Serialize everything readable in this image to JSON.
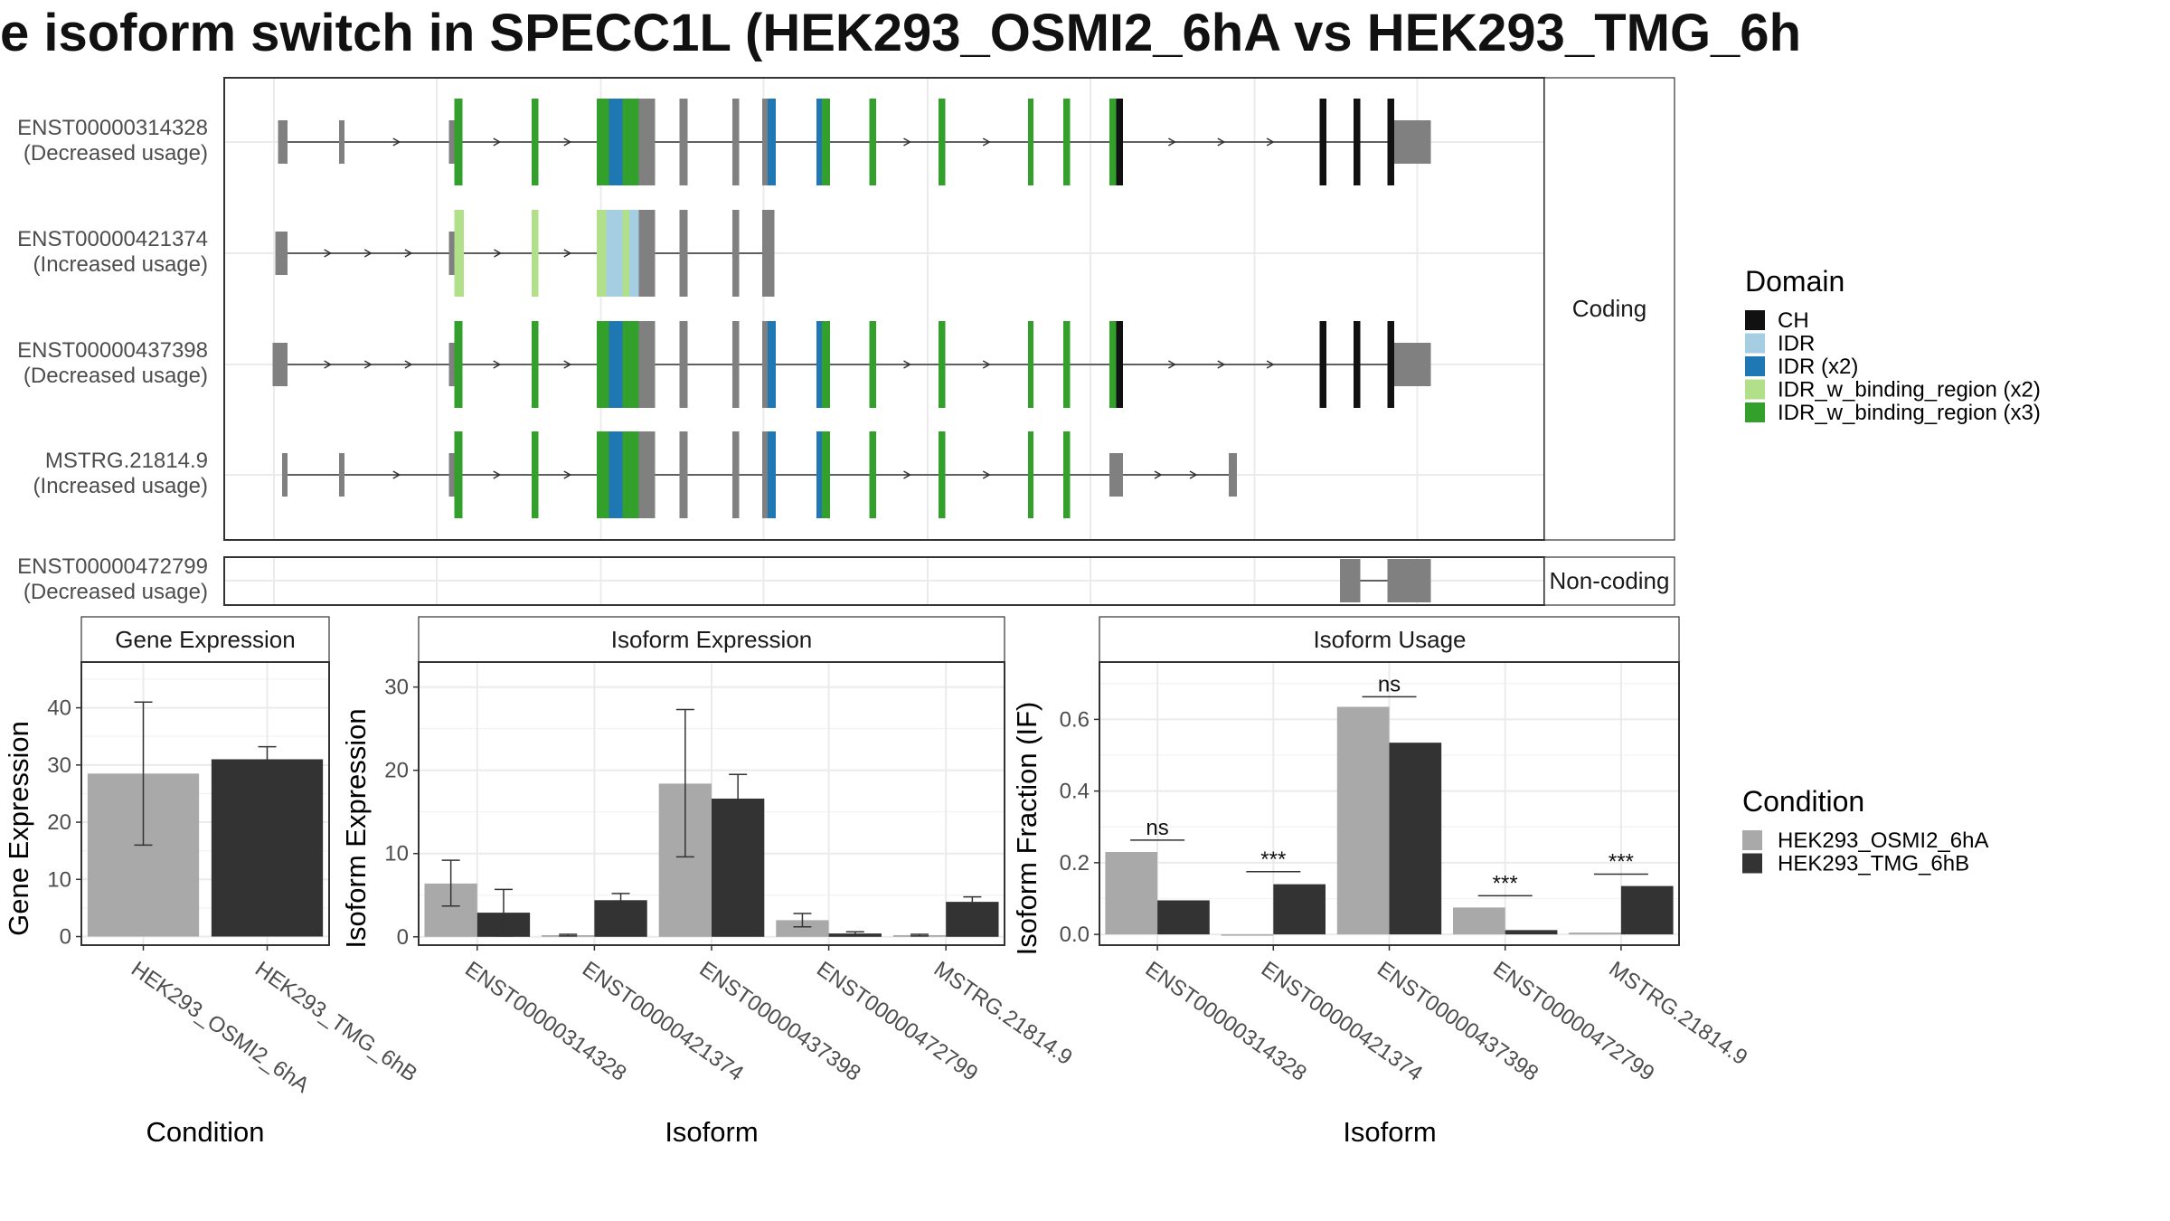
{
  "title": "e isoform switch in SPECC1L (HEK293_OSMI2_6hA vs HEK293_TMG_6h",
  "colors": {
    "condition_a": "#a9a9a9",
    "condition_b": "#333333",
    "utr": "#808080",
    "CH": "#111111",
    "IDR": "#a6cee3",
    "IDR (x2)": "#1f78b4",
    "IDR_w_binding_region (x2)": "#b2df8a",
    "IDR_w_binding_region (x3)": "#33a02c"
  },
  "legends": {
    "domain_title": "Domain",
    "domain_items": [
      "CH",
      "IDR",
      "IDR (x2)",
      "IDR_w_binding_region (x2)",
      "IDR_w_binding_region (x3)"
    ],
    "condition_title": "Condition",
    "condition_items": [
      "HEK293_OSMI2_6hA",
      "HEK293_TMG_6hB"
    ]
  },
  "chart_data": [
    {
      "type": "gene-structure",
      "facets": [
        "Coding",
        "Non-coding"
      ],
      "transcripts": [
        {
          "id": "ENST00000314328",
          "note": "(Decreased usage)",
          "facet": "Coding",
          "exons": [
            [
              205,
              212,
              "utr"
            ],
            [
              250,
              254,
              "utr"
            ],
            [
              331,
              335,
              "utr"
            ],
            [
              335,
              341,
              "IDR_w_binding_region (x3)"
            ],
            [
              392,
              397,
              "IDR_w_binding_region (x3)"
            ],
            [
              440,
              449,
              "IDR_w_binding_region (x3)"
            ],
            [
              449,
              459,
              "IDR (x2)"
            ],
            [
              459,
              471,
              "IDR_w_binding_region (x3)"
            ],
            [
              471,
              483,
              "utr"
            ],
            [
              501,
              507,
              "utr"
            ],
            [
              540,
              545,
              "utr"
            ],
            [
              562,
              566,
              "utr"
            ],
            [
              566,
              572,
              "IDR (x2)"
            ],
            [
              602,
              606,
              "IDR (x2)"
            ],
            [
              606,
              612,
              "IDR_w_binding_region (x3)"
            ],
            [
              641,
              646,
              "IDR_w_binding_region (x3)"
            ],
            [
              692,
              697,
              "IDR_w_binding_region (x3)"
            ],
            [
              758,
              762,
              "IDR_w_binding_region (x3)"
            ],
            [
              784,
              789,
              "IDR_w_binding_region (x3)"
            ],
            [
              818,
              823,
              "IDR_w_binding_region (x3)"
            ],
            [
              823,
              828,
              "CH"
            ],
            [
              973,
              978,
              "CH"
            ],
            [
              998,
              1003,
              "CH"
            ],
            [
              1023,
              1028,
              "CH"
            ],
            [
              1028,
              1055,
              "utr"
            ]
          ]
        },
        {
          "id": "ENST00000421374",
          "note": "(Increased usage)",
          "facet": "Coding",
          "exons": [
            [
              203,
              212,
              "utr"
            ],
            [
              331,
              335,
              "utr"
            ],
            [
              335,
              342,
              "IDR_w_binding_region (x2)"
            ],
            [
              392,
              397,
              "IDR_w_binding_region (x2)"
            ],
            [
              440,
              447,
              "IDR_w_binding_region (x2)"
            ],
            [
              447,
              452,
              "IDR"
            ],
            [
              452,
              459,
              "IDR"
            ],
            [
              459,
              464,
              "IDR_w_binding_region (x2)"
            ],
            [
              464,
              471,
              "IDR"
            ],
            [
              471,
              483,
              "utr"
            ],
            [
              501,
              507,
              "utr"
            ],
            [
              540,
              545,
              "utr"
            ],
            [
              562,
              571,
              "utr"
            ]
          ]
        },
        {
          "id": "ENST00000437398",
          "note": "(Decreased usage)",
          "facet": "Coding",
          "exons": [
            [
              201,
              212,
              "utr"
            ],
            [
              331,
              335,
              "utr"
            ],
            [
              335,
              341,
              "IDR_w_binding_region (x3)"
            ],
            [
              392,
              397,
              "IDR_w_binding_region (x3)"
            ],
            [
              440,
              449,
              "IDR_w_binding_region (x3)"
            ],
            [
              449,
              459,
              "IDR (x2)"
            ],
            [
              459,
              471,
              "IDR_w_binding_region (x3)"
            ],
            [
              471,
              483,
              "utr"
            ],
            [
              501,
              507,
              "utr"
            ],
            [
              540,
              545,
              "utr"
            ],
            [
              562,
              566,
              "utr"
            ],
            [
              566,
              572,
              "IDR (x2)"
            ],
            [
              602,
              606,
              "IDR (x2)"
            ],
            [
              606,
              612,
              "IDR_w_binding_region (x3)"
            ],
            [
              641,
              646,
              "IDR_w_binding_region (x3)"
            ],
            [
              692,
              697,
              "IDR_w_binding_region (x3)"
            ],
            [
              758,
              762,
              "IDR_w_binding_region (x3)"
            ],
            [
              784,
              789,
              "IDR_w_binding_region (x3)"
            ],
            [
              818,
              823,
              "IDR_w_binding_region (x3)"
            ],
            [
              823,
              828,
              "CH"
            ],
            [
              973,
              978,
              "CH"
            ],
            [
              998,
              1003,
              "CH"
            ],
            [
              1023,
              1028,
              "CH"
            ],
            [
              1028,
              1055,
              "utr"
            ]
          ]
        },
        {
          "id": "MSTRG.21814.9",
          "note": "(Increased usage)",
          "facet": "Coding",
          "exons": [
            [
              208,
              212,
              "utr"
            ],
            [
              250,
              254,
              "utr"
            ],
            [
              331,
              335,
              "utr"
            ],
            [
              335,
              341,
              "IDR_w_binding_region (x3)"
            ],
            [
              392,
              397,
              "IDR_w_binding_region (x3)"
            ],
            [
              440,
              449,
              "IDR_w_binding_region (x3)"
            ],
            [
              449,
              459,
              "IDR (x2)"
            ],
            [
              459,
              471,
              "IDR_w_binding_region (x3)"
            ],
            [
              471,
              483,
              "utr"
            ],
            [
              501,
              507,
              "utr"
            ],
            [
              540,
              545,
              "utr"
            ],
            [
              562,
              566,
              "utr"
            ],
            [
              566,
              572,
              "IDR (x2)"
            ],
            [
              602,
              606,
              "IDR (x2)"
            ],
            [
              606,
              612,
              "IDR_w_binding_region (x3)"
            ],
            [
              641,
              646,
              "IDR_w_binding_region (x3)"
            ],
            [
              692,
              697,
              "IDR_w_binding_region (x3)"
            ],
            [
              758,
              762,
              "IDR_w_binding_region (x3)"
            ],
            [
              784,
              789,
              "IDR_w_binding_region (x3)"
            ],
            [
              818,
              828,
              "utr"
            ],
            [
              906,
              912,
              "utr"
            ]
          ]
        },
        {
          "id": "ENST00000472799",
          "note": "(Decreased usage)",
          "facet": "Non-coding",
          "exons": [
            [
              988,
              1003,
              "utr"
            ],
            [
              1023,
              1055,
              "utr"
            ]
          ]
        }
      ]
    },
    {
      "type": "bar",
      "title": "Gene Expression",
      "xlabel": "Condition",
      "ylabel": "Gene Expression",
      "ylim": [
        -1.5,
        48
      ],
      "yticks": [
        0,
        10,
        20,
        30,
        40
      ],
      "categories": [
        "HEK293_OSMI2_6hA",
        "HEK293_TMG_6hB"
      ],
      "values": [
        28.5,
        31
      ],
      "errors": [
        [
          16,
          41
        ],
        [
          28.8,
          33.2
        ]
      ]
    },
    {
      "type": "bar",
      "title": "Isoform Expression",
      "xlabel": "Isoform",
      "ylabel": "Isoform Expression",
      "ylim": [
        -1,
        33
      ],
      "yticks": [
        0,
        10,
        20,
        30
      ],
      "categories": [
        "ENST00000314328",
        "ENST00000421374",
        "ENST00000437398",
        "ENST00000472799",
        "MSTRG.21814.9"
      ],
      "series": [
        {
          "name": "HEK293_OSMI2_6hA",
          "values": [
            6.4,
            0.2,
            18.4,
            2.0,
            0.2
          ],
          "errors": [
            [
              3.7,
              9.2
            ],
            [
              0.1,
              0.3
            ],
            [
              9.6,
              27.3
            ],
            [
              1.2,
              2.8
            ],
            [
              0.1,
              0.3
            ]
          ]
        },
        {
          "name": "HEK293_TMG_6hB",
          "values": [
            2.9,
            4.4,
            16.6,
            0.4,
            4.2
          ],
          "errors": [
            [
              0.1,
              5.7
            ],
            [
              3.6,
              5.2
            ],
            [
              13.7,
              19.5
            ],
            [
              0.2,
              0.6
            ],
            [
              3.6,
              4.8
            ]
          ]
        }
      ]
    },
    {
      "type": "bar",
      "title": "Isoform Usage",
      "xlabel": "Isoform",
      "ylabel": "Isoform Fraction (IF)",
      "ylim": [
        -0.03,
        0.76
      ],
      "yticks": [
        0.0,
        0.2,
        0.4,
        0.6
      ],
      "ytick_labels": [
        "0.0",
        "0.2",
        "0.4",
        "0.6"
      ],
      "categories": [
        "ENST00000314328",
        "ENST00000421374",
        "ENST00000437398",
        "ENST00000472799",
        "MSTRG.21814.9"
      ],
      "series": [
        {
          "name": "HEK293_OSMI2_6hA",
          "values": [
            0.23,
            0.0,
            0.635,
            0.075,
            0.005
          ]
        },
        {
          "name": "HEK293_TMG_6hB",
          "values": [
            0.095,
            0.14,
            0.535,
            0.012,
            0.135
          ]
        }
      ],
      "significance": [
        "ns",
        "***",
        "ns",
        "***",
        "***"
      ],
      "sig_y": [
        0.263,
        0.175,
        0.663,
        0.108,
        0.168
      ]
    }
  ]
}
